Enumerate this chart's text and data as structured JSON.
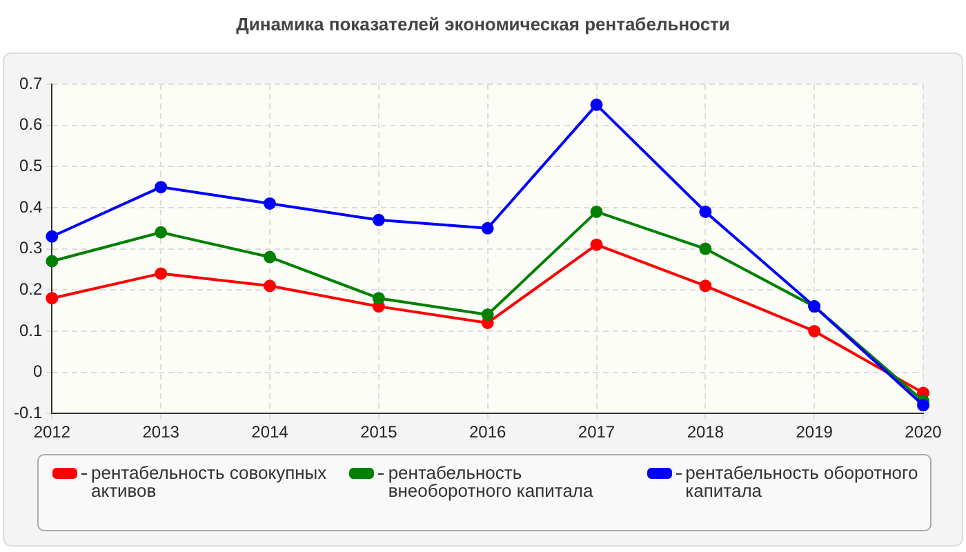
{
  "chart_data": {
    "type": "line",
    "title": "Динамика показателей экономическая рентабельности",
    "categories": [
      "2012",
      "2013",
      "2014",
      "2015",
      "2016",
      "2017",
      "2018",
      "2019",
      "2020"
    ],
    "series": [
      {
        "name": "рентабельность совокупных активов",
        "color": "#ff0000",
        "values": [
          0.18,
          0.24,
          0.21,
          0.16,
          0.12,
          0.31,
          0.21,
          0.1,
          -0.05
        ]
      },
      {
        "name": "рентабельность внеоборотного капитала",
        "color": "#008000",
        "values": [
          0.27,
          0.34,
          0.28,
          0.18,
          0.14,
          0.39,
          0.3,
          0.16,
          -0.07
        ]
      },
      {
        "name": "рентабельность оборотного капитала",
        "color": "#0000ff",
        "values": [
          0.33,
          0.45,
          0.41,
          0.37,
          0.35,
          0.65,
          0.39,
          0.16,
          -0.08
        ]
      }
    ],
    "ylim": [
      -0.1,
      0.7
    ],
    "yticks": [
      -0.1,
      0,
      0.1,
      0.2,
      0.3,
      0.4,
      0.5,
      0.6,
      0.7
    ],
    "grid": true,
    "legend": "bottom",
    "marker": "circle",
    "line_style": "solid"
  }
}
